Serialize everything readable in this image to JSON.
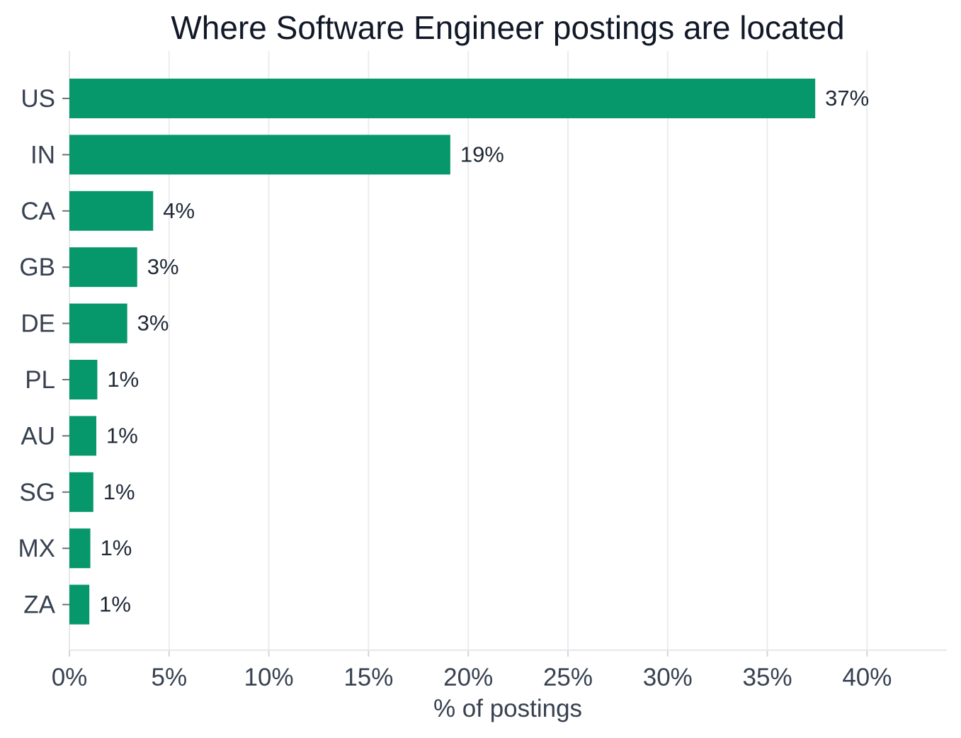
{
  "chart_data": {
    "type": "bar",
    "orientation": "horizontal",
    "title": "Where Software Engineer postings are located",
    "xlabel": "% of postings",
    "ylabel": "",
    "categories": [
      "US",
      "IN",
      "CA",
      "GB",
      "DE",
      "PL",
      "AU",
      "SG",
      "MX",
      "ZA"
    ],
    "values": [
      37.4,
      19.1,
      4.2,
      3.4,
      2.9,
      1.4,
      1.35,
      1.2,
      1.05,
      1.0
    ],
    "value_labels": [
      "37%",
      "19%",
      "4%",
      "3%",
      "3%",
      "1%",
      "1%",
      "1%",
      "1%",
      "1%"
    ],
    "xlim": [
      0,
      44
    ],
    "xticks": [
      0,
      5,
      10,
      15,
      20,
      25,
      30,
      35,
      40
    ],
    "xtick_labels": [
      "0%",
      "5%",
      "10%",
      "15%",
      "20%",
      "25%",
      "30%",
      "35%",
      "40%"
    ],
    "bar_color": "#06976a",
    "grid": "vertical",
    "legend": "none"
  }
}
